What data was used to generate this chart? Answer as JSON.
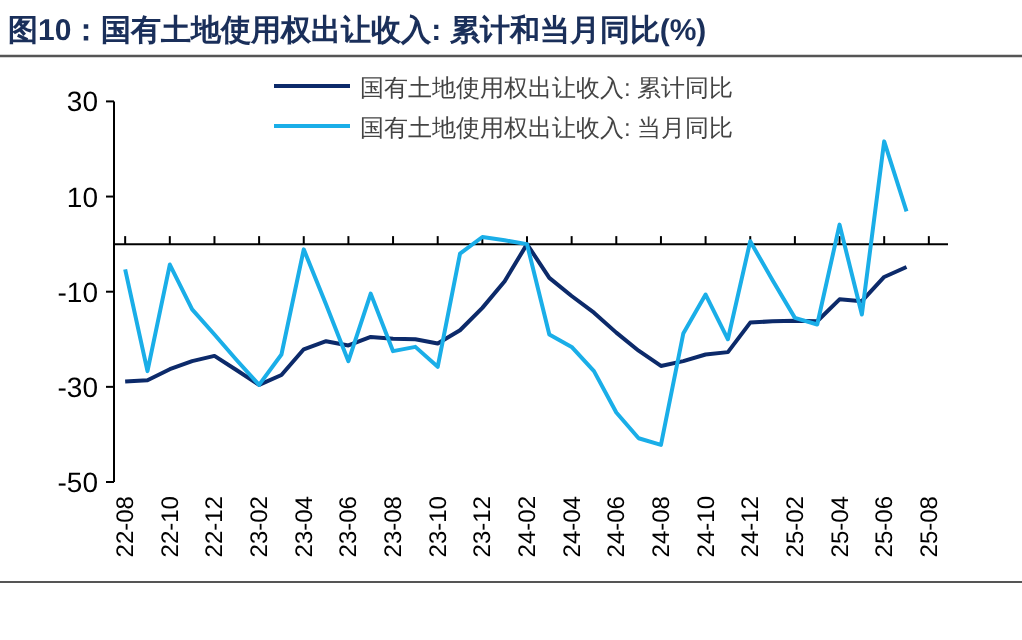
{
  "chart_data": {
    "type": "line",
    "title": "图10：国有土地使用权出让收入: 累计和当月同比(%)",
    "categories": [
      "22-08",
      null,
      "22-10",
      null,
      "22-12",
      null,
      "23-02",
      null,
      "23-04",
      null,
      "23-06",
      null,
      "23-08",
      null,
      "23-10",
      null,
      "23-12",
      null,
      "24-02",
      null,
      "24-04",
      null,
      "24-06",
      null,
      "24-08",
      null,
      "24-10",
      null,
      "24-12",
      null,
      "25-02",
      null,
      "25-04",
      null,
      "25-06",
      null,
      "25-08"
    ],
    "series": [
      {
        "name": "国有土地使用权出让收入: 累计同比",
        "color": "#0c2a6a",
        "values": [
          -28.9,
          -28.6,
          -26.3,
          -24.6,
          -23.5,
          -26.5,
          -29.6,
          -27.5,
          -22.1,
          -20.4,
          -21.3,
          -19.5,
          -19.9,
          -20.0,
          -20.9,
          -18.1,
          -13.4,
          -7.8,
          0,
          -7.1,
          -10.9,
          -14.4,
          -18.6,
          -22.4,
          -25.6,
          -24.6,
          -23.2,
          -22.7,
          -16.5,
          -16.2,
          -16.1,
          -16.2,
          -11.6,
          -12.0,
          -6.9,
          -4.8,
          null
        ]
      },
      {
        "name": "国有土地使用权出让收入: 当月同比",
        "color": "#1aaee8",
        "values": [
          -5.3,
          -26.7,
          -4.3,
          -13.7,
          -19.0,
          -24.4,
          -29.6,
          -23.2,
          -1.1,
          -12.7,
          -24.6,
          -10.4,
          -22.5,
          -21.6,
          -25.8,
          -2.0,
          1.5,
          0.8,
          0,
          -19.0,
          -21.6,
          -26.7,
          -35.4,
          -40.8,
          -42.2,
          -18.8,
          -10.6,
          -20.0,
          0.6,
          -7.6,
          -15.5,
          -16.9,
          4.1,
          -14.8,
          21.6,
          6.9,
          null
        ]
      }
    ],
    "ylim": [
      -50,
      30
    ],
    "yticks": [
      30,
      10,
      -10,
      -30,
      -50
    ],
    "legend": "top"
  }
}
